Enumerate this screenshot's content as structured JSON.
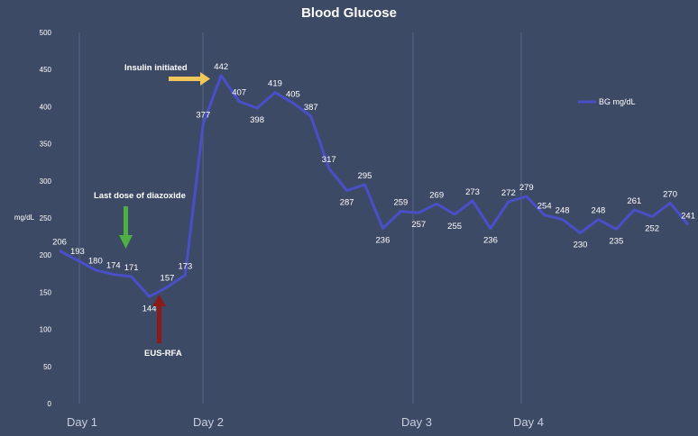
{
  "chart_data": {
    "type": "line",
    "title": "Blood Glucose",
    "xlabel": "",
    "ylabel": "mg/dL",
    "ylim": [
      0,
      500
    ],
    "yticks": [
      0,
      50,
      100,
      150,
      200,
      250,
      300,
      350,
      400,
      450,
      500
    ],
    "grid": "vertical lines at day boundaries",
    "legend": {
      "position": "right",
      "entries": [
        "BG mg/dL"
      ]
    },
    "day_labels": [
      "Day 1",
      "Day 2",
      "Day 3",
      "Day 4"
    ],
    "series": [
      {
        "name": "BG mg/dL",
        "color": "#4a4fc8",
        "values": [
          206,
          193,
          180,
          174,
          171,
          144,
          157,
          173,
          377,
          442,
          407,
          398,
          419,
          405,
          387,
          317,
          287,
          295,
          236,
          259,
          257,
          269,
          255,
          273,
          236,
          272,
          279,
          254,
          248,
          230,
          248,
          235,
          261,
          252,
          270,
          241
        ]
      }
    ],
    "annotations": [
      {
        "text": "Insulin initiated",
        "arrow": "right",
        "arrow_color": "#f0c75a",
        "point_index": 9
      },
      {
        "text": "Last dose of diazoxide",
        "arrow": "down",
        "arrow_color": "#4eb043",
        "point_index": 4
      },
      {
        "text": "EUS-RFA",
        "arrow": "up",
        "arrow_color": "#8b1a1a",
        "point_index": 5
      }
    ]
  }
}
